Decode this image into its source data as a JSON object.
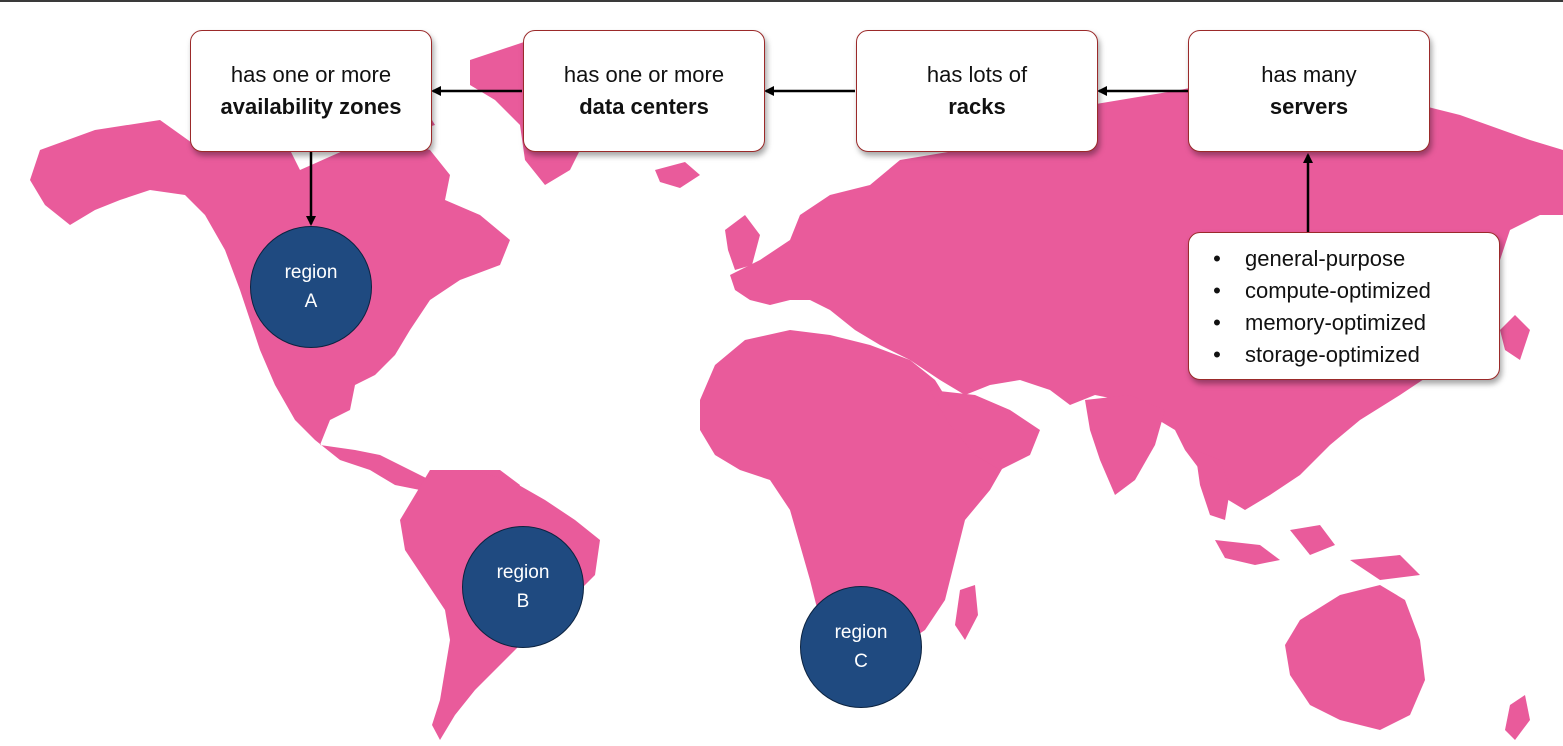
{
  "colors": {
    "map_fill": "#e95b9b",
    "region_fill": "#1f4a80",
    "box_border": "#9b2a2a",
    "arrow": "#000000"
  },
  "hierarchy": [
    {
      "line1": "has one or more",
      "line2": "availability zones"
    },
    {
      "line1": "has one or more",
      "line2": "data centers"
    },
    {
      "line1": "has lots of",
      "line2": "racks"
    },
    {
      "line1": "has many",
      "line2": "servers"
    }
  ],
  "server_types": {
    "bullet": "•",
    "items": [
      "general-purpose",
      "compute-optimized",
      "memory-optimized",
      "storage-optimized"
    ]
  },
  "regions": [
    {
      "word": "region",
      "letter": "A"
    },
    {
      "word": "region",
      "letter": "B"
    },
    {
      "word": "region",
      "letter": "C"
    }
  ]
}
